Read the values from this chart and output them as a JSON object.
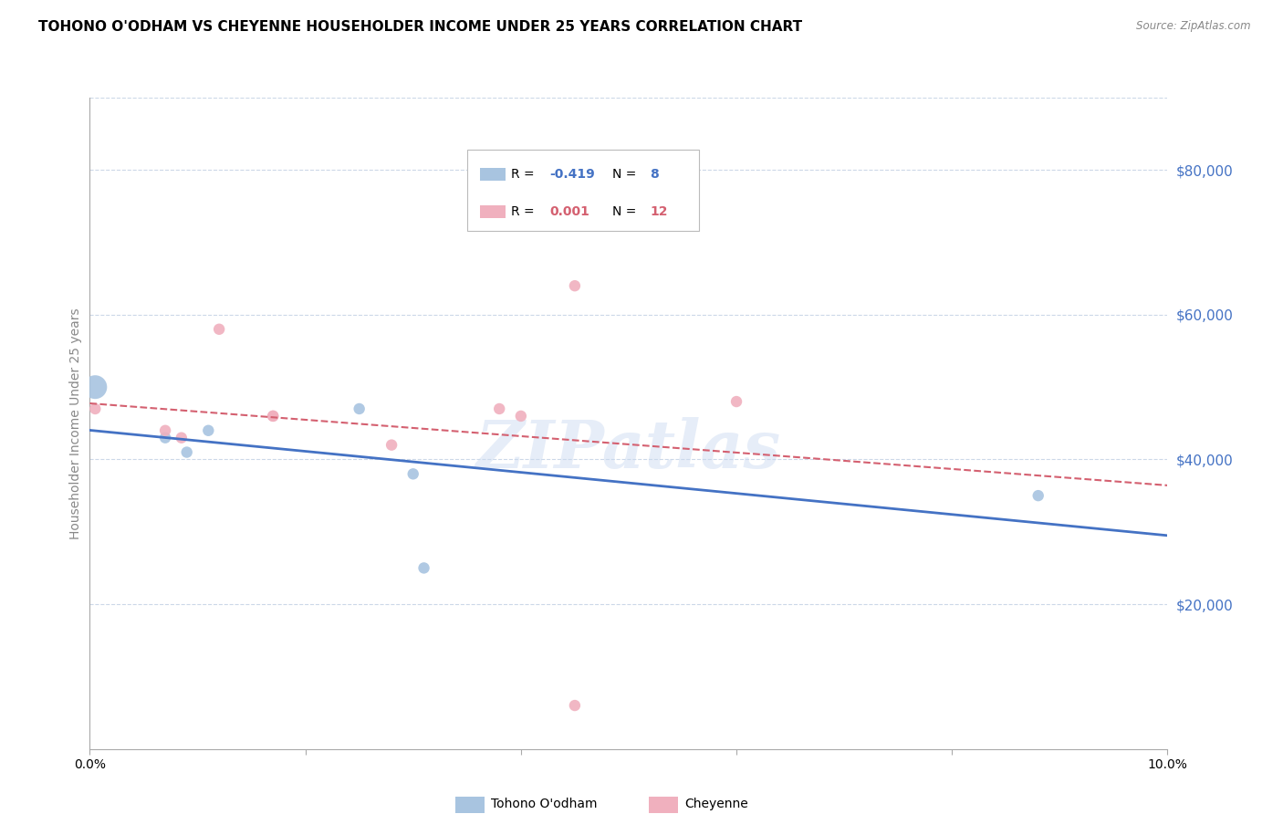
{
  "title": "TOHONO O'ODHAM VS CHEYENNE HOUSEHOLDER INCOME UNDER 25 YEARS CORRELATION CHART",
  "source": "Source: ZipAtlas.com",
  "ylabel": "Householder Income Under 25 years",
  "ytick_labels": [
    "$20,000",
    "$40,000",
    "$60,000",
    "$80,000"
  ],
  "ytick_vals": [
    20000,
    40000,
    60000,
    80000
  ],
  "ylim": [
    0,
    90000
  ],
  "xlim": [
    0.0,
    10.0
  ],
  "xtick_vals": [
    0.0,
    2.0,
    4.0,
    6.0,
    8.0,
    10.0
  ],
  "xtick_labels": [
    "0.0%",
    "",
    "",
    "",
    "",
    "10.0%"
  ],
  "tohono_x": [
    0.05,
    0.7,
    0.9,
    1.1,
    2.5,
    3.0,
    3.1,
    8.8
  ],
  "tohono_y": [
    50000,
    43000,
    41000,
    44000,
    47000,
    38000,
    25000,
    35000
  ],
  "tohono_sizes": [
    350,
    80,
    80,
    80,
    80,
    80,
    80,
    80
  ],
  "cheyenne_x": [
    0.05,
    0.7,
    0.85,
    1.2,
    1.7,
    1.7,
    2.8,
    3.8,
    4.5,
    6.0,
    4.0,
    4.5
  ],
  "cheyenne_y": [
    47000,
    44000,
    43000,
    58000,
    46000,
    46000,
    42000,
    47000,
    64000,
    48000,
    46000,
    6000
  ],
  "cheyenne_sizes": [
    80,
    80,
    80,
    80,
    80,
    80,
    80,
    80,
    80,
    80,
    80,
    80
  ],
  "tohono_color": "#a8c4e0",
  "cheyenne_color": "#f0b0be",
  "tohono_line_color": "#4472c4",
  "cheyenne_line_color": "#d46070",
  "watermark": "ZIPatlas",
  "background_color": "#ffffff",
  "grid_color": "#ccd8e8",
  "title_fontsize": 11,
  "axis_label_fontsize": 10,
  "tick_fontsize": 9,
  "right_tick_color": "#4472c4"
}
